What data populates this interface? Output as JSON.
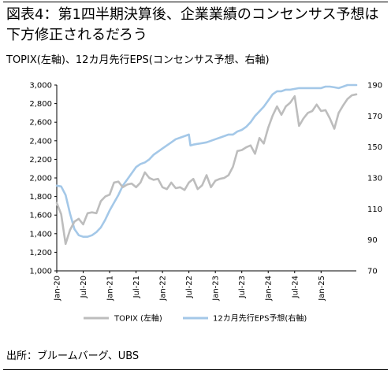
{
  "title": "図表4：第1四半期決算後、企業業績のコンセンサス予想は下方修正されるだろう",
  "subtitle": "TOPIX(左軸)、12カ月先行EPS(コンセンサス予想、右軸)",
  "source": "出所：ブルームバーグ、UBS",
  "colors": {
    "topix": "#bdbdbd",
    "eps": "#a4c8e8",
    "axis": "#000000"
  },
  "chart_data": {
    "type": "line",
    "x_tick_labels": [
      "Jan-20",
      "Jul-20",
      "Jan-21",
      "Jul-21",
      "Jan-22",
      "Jul-22",
      "Jan-23",
      "Jul-23",
      "Jan-24",
      "Jul-24",
      "Jan-25"
    ],
    "y_left": {
      "ticks": [
        "1,000",
        "1,200",
        "1,400",
        "1,600",
        "1,800",
        "2,000",
        "2,200",
        "2,400",
        "2,600",
        "2,800",
        "3,000"
      ],
      "ylim": [
        1000,
        3000
      ]
    },
    "y_right": {
      "ticks": [
        "70",
        "90",
        "110",
        "130",
        "150",
        "170",
        "190"
      ],
      "ylim": [
        70,
        190
      ]
    },
    "x_range": [
      "2020-01",
      "2025-09"
    ],
    "legend": {
      "position": "bottom",
      "entries": [
        "TOPIX (左軸)",
        "12カ月先行EPS予想(右軸)"
      ]
    },
    "series": [
      {
        "name": "TOPIX (左軸)",
        "axis": "left",
        "x": [
          "2020-01",
          "2020-02",
          "2020-03",
          "2020-04",
          "2020-05",
          "2020-06",
          "2020-07",
          "2020-08",
          "2020-09",
          "2020-10",
          "2020-11",
          "2020-12",
          "2021-01",
          "2021-02",
          "2021-03",
          "2021-04",
          "2021-05",
          "2021-06",
          "2021-07",
          "2021-08",
          "2021-09",
          "2021-10",
          "2021-11",
          "2021-12",
          "2022-01",
          "2022-02",
          "2022-03",
          "2022-04",
          "2022-05",
          "2022-06",
          "2022-07",
          "2022-08",
          "2022-09",
          "2022-10",
          "2022-11",
          "2022-12",
          "2023-01",
          "2023-02",
          "2023-03",
          "2023-04",
          "2023-05",
          "2023-06",
          "2023-07",
          "2023-08",
          "2023-09",
          "2023-10",
          "2023-11",
          "2023-12",
          "2024-01",
          "2024-02",
          "2024-03",
          "2024-04",
          "2024-05",
          "2024-06",
          "2024-07",
          "2024-08",
          "2024-09",
          "2024-10",
          "2024-11",
          "2024-12",
          "2025-01",
          "2025-02",
          "2025-03",
          "2025-04",
          "2025-05",
          "2025-06",
          "2025-07",
          "2025-08",
          "2025-09"
        ],
        "values": [
          1730,
          1610,
          1290,
          1440,
          1530,
          1560,
          1500,
          1620,
          1630,
          1620,
          1750,
          1800,
          1820,
          1950,
          1960,
          1900,
          1930,
          1940,
          1900,
          1950,
          2060,
          2000,
          1980,
          1990,
          1900,
          1880,
          1950,
          1890,
          1900,
          1870,
          1950,
          1990,
          1880,
          1920,
          2030,
          1900,
          1970,
          1990,
          2000,
          2030,
          2120,
          2290,
          2300,
          2330,
          2350,
          2260,
          2430,
          2370,
          2540,
          2670,
          2770,
          2680,
          2770,
          2810,
          2880,
          2560,
          2640,
          2700,
          2720,
          2790,
          2720,
          2730,
          2640,
          2530,
          2700,
          2780,
          2850,
          2890,
          2900
        ]
      },
      {
        "name": "12カ月先行EPS予想(右軸)",
        "axis": "right",
        "x": [
          "2020-01",
          "2020-02",
          "2020-03",
          "2020-04",
          "2020-05",
          "2020-06",
          "2020-07",
          "2020-08",
          "2020-09",
          "2020-10",
          "2020-11",
          "2020-12",
          "2021-01",
          "2021-02",
          "2021-03",
          "2021-04",
          "2021-05",
          "2021-06",
          "2021-07",
          "2021-08",
          "2021-09",
          "2021-10",
          "2021-11",
          "2021-12",
          "2022-01",
          "2022-02",
          "2022-03",
          "2022-04",
          "2022-05",
          "2022-06",
          "2022-07",
          "2022-07b",
          "2022-08",
          "2022-09",
          "2022-10",
          "2022-11",
          "2022-12",
          "2023-01",
          "2023-02",
          "2023-03",
          "2023-04",
          "2023-05",
          "2023-06",
          "2023-07",
          "2023-08",
          "2023-09",
          "2023-10",
          "2023-11",
          "2023-12",
          "2024-01",
          "2024-02",
          "2024-03",
          "2024-04",
          "2024-05",
          "2024-06",
          "2024-07",
          "2024-08",
          "2024-09",
          "2024-10",
          "2024-11",
          "2024-12",
          "2025-01",
          "2025-02",
          "2025-03",
          "2025-04",
          "2025-05",
          "2025-06",
          "2025-07",
          "2025-08",
          "2025-09"
        ],
        "values": [
          125,
          124.5,
          119,
          107,
          97,
          93,
          92,
          92,
          93,
          95,
          98,
          103,
          109,
          114,
          119,
          125,
          129,
          133,
          137,
          139,
          140,
          142,
          145,
          147,
          149,
          151,
          153,
          155,
          156,
          157,
          158,
          151,
          151.5,
          152,
          152.5,
          153,
          154,
          155,
          156,
          157,
          158,
          158,
          160,
          161,
          163,
          166,
          170,
          173,
          176,
          180,
          184,
          186,
          186,
          187,
          187,
          187.5,
          188,
          188,
          188,
          188,
          188,
          188,
          189,
          189,
          188.5,
          188,
          189,
          190,
          190,
          190
        ]
      }
    ]
  }
}
